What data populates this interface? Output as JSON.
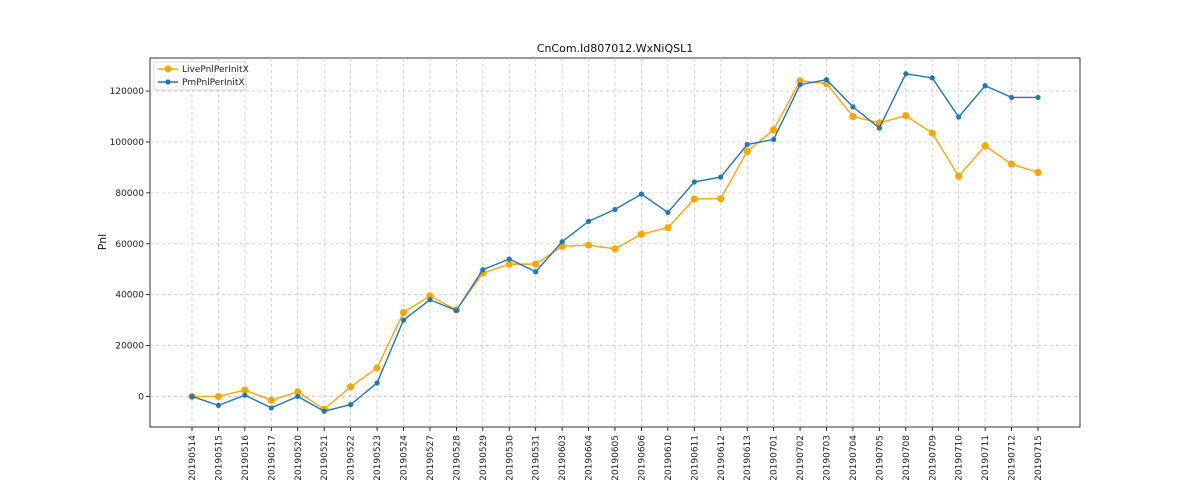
{
  "chart_data": {
    "type": "line",
    "title": "CnCom.Id807012.WxNiQSL1",
    "xlabel": "",
    "ylabel": "Pnl",
    "ylim": [
      -12000,
      133000
    ],
    "y_ticks": [
      0,
      20000,
      40000,
      60000,
      80000,
      100000,
      120000
    ],
    "grid": true,
    "legend_position": "top-left",
    "categories": [
      "20190514",
      "20190515",
      "20190516",
      "20190517",
      "20190520",
      "20190521",
      "20190522",
      "20190523",
      "20190524",
      "20190527",
      "20190528",
      "20190529",
      "20190530",
      "20190531",
      "20190603",
      "20190604",
      "20190605",
      "20190606",
      "20190610",
      "20190611",
      "20190612",
      "20190613",
      "20190701",
      "20190702",
      "20190703",
      "20190704",
      "20190705",
      "20190708",
      "20190709",
      "20190710",
      "20190711",
      "20190712",
      "20190715"
    ],
    "series": [
      {
        "name": "LivePnlPerInitX",
        "color": "#ffa500",
        "marker": "circle-large",
        "values": [
          0,
          0,
          2500,
          -1500,
          1800,
          -5000,
          3800,
          11200,
          33000,
          39500,
          34000,
          48500,
          52000,
          52000,
          59000,
          59500,
          58000,
          63800,
          66300,
          77600,
          77700,
          96300,
          104800,
          124000,
          123000,
          110000,
          107500,
          110300,
          103500,
          86500,
          98500,
          91300,
          88000
        ]
      },
      {
        "name": "PmPnlPerInitX",
        "color": "#1f77b4",
        "marker": "circle-small",
        "values": [
          0,
          -3500,
          500,
          -4500,
          0,
          -5800,
          -3200,
          5300,
          30000,
          38000,
          33800,
          49800,
          54000,
          49000,
          60800,
          68800,
          73500,
          79500,
          72300,
          84300,
          86200,
          99000,
          101000,
          122500,
          124500,
          113800,
          105500,
          126800,
          125200,
          109800,
          122100,
          117500,
          117500
        ]
      }
    ]
  }
}
